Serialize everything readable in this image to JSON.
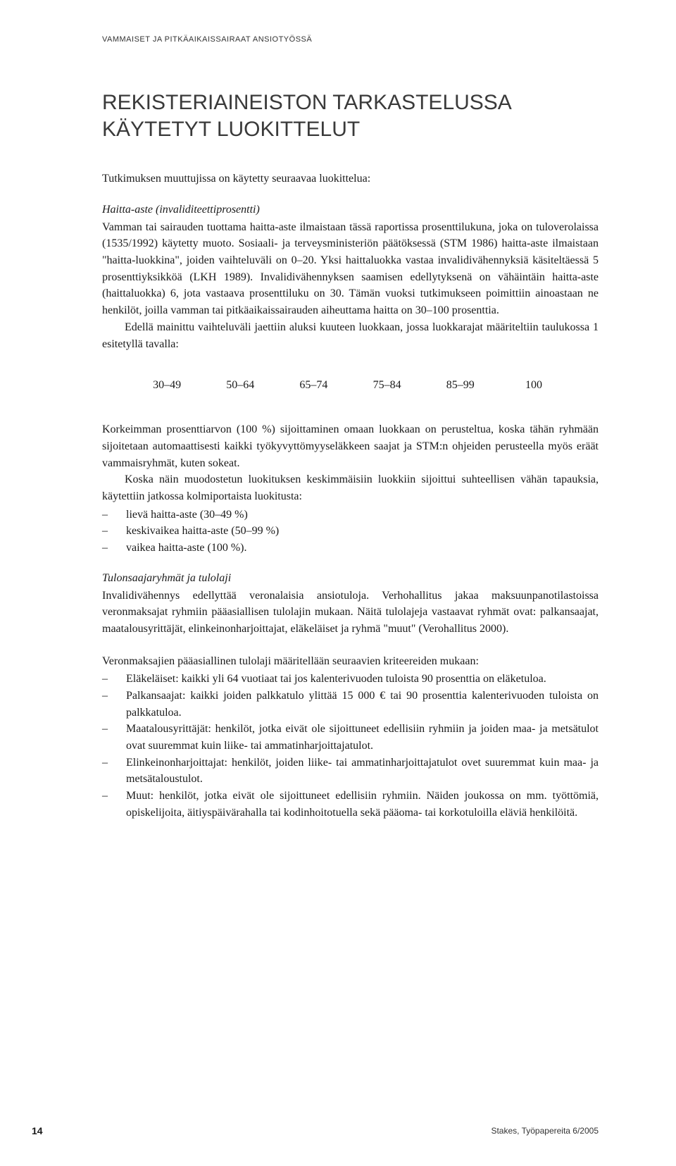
{
  "header": {
    "running_title": "VAMMAISET JA PITKÄAIKAISSAIRAAT ANSIOTYÖSSÄ"
  },
  "title": "REKISTERIAINEISTON TARKASTELUSSA KÄYTETYT LUOKITTELUT",
  "intro": "Tutkimuksen muuttujissa on käytetty seuraavaa luokittelua:",
  "section1": {
    "heading": "Haitta-aste (invaliditeettiprosentti)",
    "para1": "Vamman tai sairauden tuottama haitta-aste ilmaistaan tässä raportissa prosenttilukuna, joka on tuloverolaissa (1535/1992) käytetty muoto. Sosiaali- ja terveysministeriön päätöksessä (STM 1986) haitta-aste ilmaistaan \"haitta-luokkina\", joiden vaihteluväli on 0–20. Yksi haittaluokka vastaa invalidivähennyksiä käsiteltäessä 5 prosenttiyksikköä (LKH 1989). Invalidivähennyksen saamisen edellytyksenä on vähäintäin haitta-aste (haittaluokka) 6, jota vastaava prosenttiluku on 30. Tämän vuoksi tutkimukseen poimittiin ainoastaan ne henkilöt, joilla vamman tai pitkäaikaissairauden aiheuttama haitta on 30–100 prosenttia.",
    "para2": "Edellä mainittu vaihteluväli jaettiin aluksi kuuteen luokkaan, jossa luokkarajat määriteltiin taulukossa 1 esitetyllä tavalla:"
  },
  "ranges": [
    "30–49",
    "50–64",
    "65–74",
    "75–84",
    "85–99",
    "100"
  ],
  "section2": {
    "para1": "Korkeimman prosenttiarvon (100 %) sijoittaminen omaan luokkaan on perusteltua, koska tähän ryhmään sijoitetaan automaattisesti kaikki työkyvyttömyyseläkkeen saajat ja STM:n ohjeiden perusteella myös eräät vammaisryhmät, kuten sokeat.",
    "para2": "Koska näin muodostetun luokituksen keskimmäisiin luokkiin sijoittui suhteellisen vähän tapauksia, käytettiin jatkossa  kolmiportaista luokitusta:",
    "list": [
      "lievä haitta-aste (30–49 %)",
      "keskivaikea haitta-aste (50–99 %)",
      "vaikea haitta-aste (100 %)."
    ]
  },
  "section3": {
    "heading": "Tulonsaajaryhmät ja tulolaji",
    "para1": "Invalidivähennys edellyttää veronalaisia ansiotuloja. Verhohallitus jakaa maksuunpanotilastoissa veronmaksajat ryhmiin pääasiallisen tulolajin mukaan. Näitä tulolajeja vastaavat ryhmät ovat: palkansaajat, maatalousyrittäjät, elinkeinonharjoittajat, eläkeläiset ja ryhmä \"muut\" (Verohallitus 2000)."
  },
  "section4": {
    "intro": "Veronmaksajien pääasiallinen tulolaji määritellään seuraavien kriteereiden mukaan:",
    "list": [
      "Eläkeläiset: kaikki yli 64 vuotiaat tai jos kalenterivuoden tuloista 90 prosenttia on eläketuloa.",
      "Palkansaajat: kaikki joiden palkkatulo ylittää 15 000 € tai 90 prosenttia kalenterivuoden tuloista on palkkatuloa.",
      "Maatalousyrittäjät: henkilöt, jotka eivät ole sijoittuneet edellisiin ryhmiin ja joiden maa- ja metsätulot ovat suuremmat kuin liike- tai ammatinharjoittajatulot.",
      "Elinkeinonharjoittajat: henkilöt, joiden liike- tai ammatinharjoittajatulot ovet suuremmat kuin maa- ja metsätaloustulot.",
      "Muut: henkilöt, jotka eivät ole sijoittuneet edellisiin ryhmiin. Näiden joukossa on mm. työttömiä, opiskelijoita, äitiyspäivärahalla tai kodinhoitotuella sekä pääoma- tai korkotuloilla eläviä henkilöitä."
    ]
  },
  "footer": {
    "page_number": "14",
    "publication": "Stakes, Työpapereita 6/2005"
  }
}
